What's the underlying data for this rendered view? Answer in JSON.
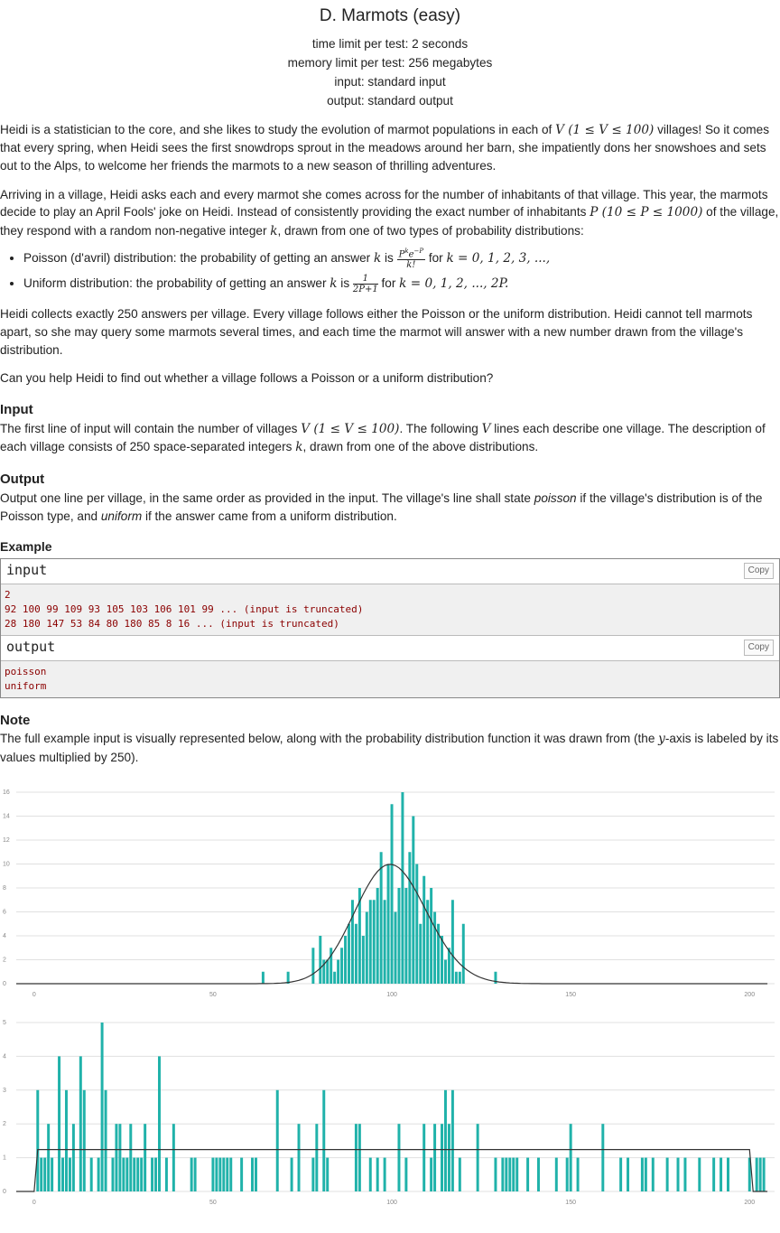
{
  "problem": {
    "title": "D. Marmots (easy)",
    "time_limit": "time limit per test: 2 seconds",
    "memory_limit": "memory limit per test: 256 megabytes",
    "input_file": "input: standard input",
    "output_file": "output: standard output"
  },
  "statement": {
    "p1a": "Heidi is a statistician to the core, and she likes to study the evolution of marmot populations in each of ",
    "p1m": "V (1 ≤ V ≤ 100)",
    "p1b": " villages! So it comes that every spring, when Heidi sees the first snowdrops sprout in the meadows around her barn, she impatiently dons her snowshoes and sets out to the Alps, to welcome her friends the marmots to a new season of thrilling adventures.",
    "p2a": "Arriving in a village, Heidi asks each and every marmot she comes across for the number of inhabitants of that village. This year, the marmots decide to play an April Fools' joke on Heidi. Instead of consistently providing the exact number of inhabitants ",
    "p2m": "P (10 ≤ P ≤ 1000)",
    "p2b": " of the village, they respond with a random non-negative integer ",
    "p2k": "k",
    "p2c": ", drawn from one of two types of probability distributions:",
    "li1a": "Poisson (d'avril) distribution: the probability of getting an answer ",
    "li1k": "k",
    "li1b": " is ",
    "li1num": "P",
    "li1num_sup": "k",
    "li1num_e": "e",
    "li1num_esup": "−P",
    "li1den": "k!",
    "li1c": " for ",
    "li1m": "k = 0, 1, 2, 3, ...,",
    "li2a": "Uniform distribution: the probability of getting an answer ",
    "li2k": "k",
    "li2b": " is ",
    "li2num": "1",
    "li2den": "2P+1",
    "li2c": " for ",
    "li2m": "k = 0, 1, 2, ..., 2P.",
    "p3": "Heidi collects exactly 250 answers per village. Every village follows either the Poisson or the uniform distribution. Heidi cannot tell marmots apart, so she may query some marmots several times, and each time the marmot will answer with a new number drawn from the village's distribution.",
    "p4": "Can you help Heidi to find out whether a village follows a Poisson or a uniform distribution?"
  },
  "input_section": {
    "heading": "Input",
    "a": "The first line of input will contain the number of villages ",
    "m1": "V (1 ≤ V ≤ 100)",
    "b": ". The following ",
    "m2": "V",
    "c": " lines each describe one village. The description of each village consists of 250 space-separated integers ",
    "m3": "k",
    "d": ", drawn from one of the above distributions."
  },
  "output_section": {
    "heading": "Output",
    "a": "Output one line per village, in the same order as provided in the input. The village's line shall state ",
    "em1": "poisson",
    "b": " if the village's distribution is of the Poisson type, and ",
    "em2": "uniform",
    "c": " if the answer came from a uniform distribution."
  },
  "example": {
    "heading": "Example",
    "input_label": "input",
    "output_label": "output",
    "copy_label": "Copy",
    "input_lines": "2\n92 100 99 109 93 105 103 106 101 99 ... (input is truncated)\n28 180 147 53 84 80 180 85 8 16 ... (input is truncated)",
    "output_lines": "poisson\nuniform"
  },
  "note": {
    "heading": "Note",
    "a": "The full example input is visually represented below, along with the probability distribution function it was drawn from (the ",
    "m": "y",
    "b": "-axis is labeled by its values multiplied by 250)."
  },
  "colors": {
    "bar": "#20b2aa",
    "curve": "#333333",
    "grid": "#e0e0e0"
  },
  "chart_data": [
    {
      "type": "bar",
      "x_ticks": [
        0,
        50,
        100,
        150,
        200
      ],
      "y_ticks": [
        0,
        2,
        4,
        6,
        8,
        10,
        12,
        14,
        16
      ],
      "xlim": [
        -5,
        207
      ],
      "ylim": [
        0,
        16
      ],
      "grid": true,
      "points": [
        [
          64,
          1
        ],
        [
          71,
          1
        ],
        [
          78,
          3
        ],
        [
          80,
          4
        ],
        [
          81,
          2
        ],
        [
          82,
          2
        ],
        [
          83,
          3
        ],
        [
          84,
          1
        ],
        [
          85,
          2
        ],
        [
          86,
          3
        ],
        [
          87,
          4
        ],
        [
          88,
          5
        ],
        [
          89,
          7
        ],
        [
          90,
          5
        ],
        [
          91,
          8
        ],
        [
          92,
          4
        ],
        [
          93,
          6
        ],
        [
          94,
          7
        ],
        [
          95,
          7
        ],
        [
          96,
          8
        ],
        [
          97,
          11
        ],
        [
          98,
          7
        ],
        [
          99,
          10
        ],
        [
          100,
          15
        ],
        [
          101,
          6
        ],
        [
          102,
          8
        ],
        [
          103,
          16
        ],
        [
          104,
          8
        ],
        [
          105,
          11
        ],
        [
          106,
          14
        ],
        [
          107,
          10
        ],
        [
          108,
          5
        ],
        [
          109,
          9
        ],
        [
          110,
          7
        ],
        [
          111,
          8
        ],
        [
          112,
          6
        ],
        [
          113,
          5
        ],
        [
          114,
          4
        ],
        [
          115,
          2
        ],
        [
          116,
          3
        ],
        [
          117,
          7
        ],
        [
          118,
          1
        ],
        [
          119,
          1
        ],
        [
          120,
          5
        ],
        [
          129,
          1
        ]
      ],
      "curve": {
        "kind": "poisson",
        "lambda": 100,
        "scale": 250,
        "x_range": [
          -5,
          205
        ]
      }
    },
    {
      "type": "bar",
      "x_ticks": [
        0,
        50,
        100,
        150,
        200
      ],
      "y_ticks": [
        0,
        1,
        2,
        3,
        4,
        5
      ],
      "xlim": [
        -5,
        207
      ],
      "ylim": [
        0,
        5
      ],
      "grid": true,
      "points": [
        [
          1,
          3
        ],
        [
          2,
          1
        ],
        [
          3,
          1
        ],
        [
          4,
          2
        ],
        [
          5,
          1
        ],
        [
          7,
          4
        ],
        [
          8,
          1
        ],
        [
          9,
          3
        ],
        [
          10,
          1
        ],
        [
          11,
          2
        ],
        [
          13,
          4
        ],
        [
          14,
          3
        ],
        [
          16,
          1
        ],
        [
          18,
          1
        ],
        [
          19,
          5
        ],
        [
          20,
          3
        ],
        [
          22,
          1
        ],
        [
          23,
          2
        ],
        [
          24,
          2
        ],
        [
          25,
          1
        ],
        [
          26,
          1
        ],
        [
          27,
          2
        ],
        [
          28,
          1
        ],
        [
          29,
          1
        ],
        [
          30,
          1
        ],
        [
          31,
          2
        ],
        [
          33,
          1
        ],
        [
          34,
          1
        ],
        [
          35,
          4
        ],
        [
          37,
          1
        ],
        [
          39,
          2
        ],
        [
          44,
          1
        ],
        [
          45,
          1
        ],
        [
          50,
          1
        ],
        [
          51,
          1
        ],
        [
          52,
          1
        ],
        [
          53,
          1
        ],
        [
          54,
          1
        ],
        [
          55,
          1
        ],
        [
          58,
          1
        ],
        [
          61,
          1
        ],
        [
          62,
          1
        ],
        [
          68,
          3
        ],
        [
          72,
          1
        ],
        [
          74,
          2
        ],
        [
          78,
          1
        ],
        [
          79,
          2
        ],
        [
          82,
          1
        ],
        [
          81,
          3
        ],
        [
          90,
          2
        ],
        [
          91,
          2
        ],
        [
          94,
          1
        ],
        [
          96,
          1
        ],
        [
          98,
          1
        ],
        [
          102,
          2
        ],
        [
          104,
          1
        ],
        [
          109,
          2
        ],
        [
          111,
          1
        ],
        [
          112,
          2
        ],
        [
          114,
          2
        ],
        [
          115,
          3
        ],
        [
          116,
          2
        ],
        [
          117,
          3
        ],
        [
          119,
          1
        ],
        [
          124,
          2
        ],
        [
          129,
          1
        ],
        [
          131,
          1
        ],
        [
          132,
          1
        ],
        [
          133,
          1
        ],
        [
          134,
          1
        ],
        [
          135,
          1
        ],
        [
          138,
          1
        ],
        [
          141,
          1
        ],
        [
          146,
          1
        ],
        [
          149,
          1
        ],
        [
          150,
          2
        ],
        [
          152,
          1
        ],
        [
          159,
          2
        ],
        [
          164,
          1
        ],
        [
          166,
          1
        ],
        [
          170,
          1
        ],
        [
          171,
          1
        ],
        [
          173,
          1
        ],
        [
          177,
          1
        ],
        [
          180,
          1
        ],
        [
          182,
          1
        ],
        [
          186,
          1
        ],
        [
          190,
          1
        ],
        [
          192,
          1
        ],
        [
          194,
          1
        ],
        [
          200,
          1
        ],
        [
          202,
          1
        ],
        [
          203,
          1
        ],
        [
          204,
          1
        ]
      ],
      "curve": {
        "kind": "uniform",
        "level": 1.24,
        "x_range": [
          0,
          200
        ],
        "lead": [
          -5,
          0
        ],
        "tail": [
          200,
          205
        ]
      }
    }
  ]
}
